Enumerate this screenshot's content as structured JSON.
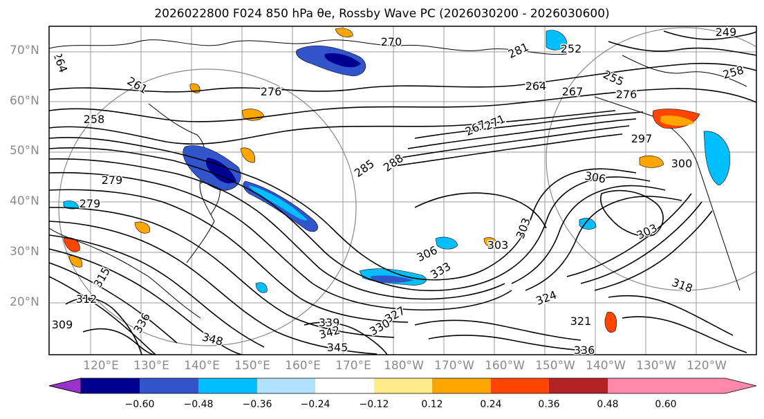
{
  "title": "2026022800 F024 850 hPa θe, Rossby Wave PC (2026030200 - 2026030600)",
  "map": {
    "lat_labels": [
      "70°N",
      "60°N",
      "50°N",
      "40°N",
      "30°N",
      "20°N"
    ],
    "lon_labels": [
      "120°E",
      "130°E",
      "140°E",
      "150°E",
      "160°E",
      "170°E",
      "180°W",
      "170°W",
      "160°W",
      "150°W",
      "140°W",
      "130°W",
      "120°W"
    ],
    "contour_labels": [
      "270",
      "249",
      "281",
      "252",
      "264",
      "261",
      "276",
      "255",
      "258",
      "258",
      "264",
      "267",
      "267",
      "271",
      "297",
      "276",
      "279",
      "285",
      "288",
      "300",
      "306",
      "279",
      "303",
      "303",
      "306",
      "303",
      "318",
      "339",
      "342",
      "345",
      "348",
      "336",
      "321",
      "324",
      "327",
      "330",
      "333",
      "315",
      "312",
      "309",
      "336"
    ]
  },
  "colorbar": {
    "ticks": [
      "−0.60",
      "−0.48",
      "−0.36",
      "−0.24",
      "−0.12",
      "0.12",
      "0.24",
      "0.36",
      "0.48",
      "0.60"
    ],
    "colors": [
      "#9933cc",
      "#000090",
      "#3355cc",
      "#00bfff",
      "#b0e2ff",
      "#ffffff",
      "#ffeb8a",
      "#ffa500",
      "#ff4500",
      "#b22222",
      "#ff88aa"
    ]
  }
}
